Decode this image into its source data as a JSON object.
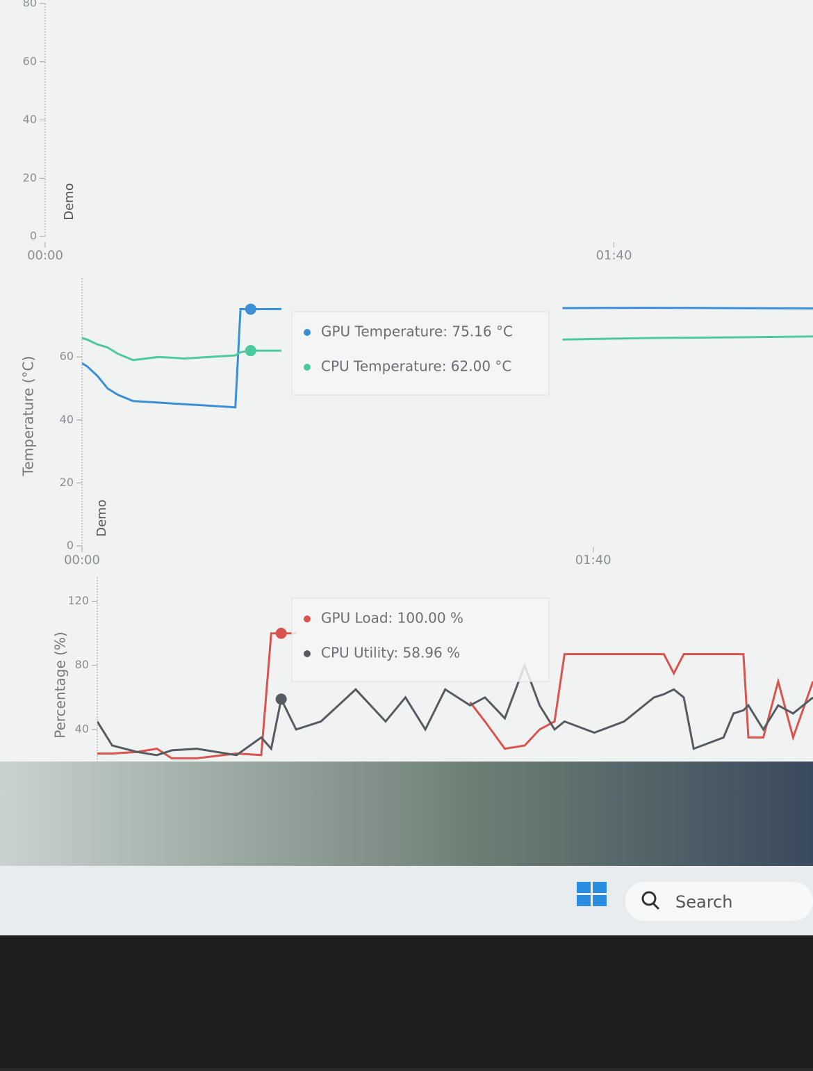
{
  "chart_data": [
    {
      "type": "line",
      "annotation": "Demo",
      "xlim": [
        0,
        135
      ],
      "xticks": [
        {
          "value": 0,
          "label": "00:00"
        },
        {
          "value": 100,
          "label": "01:40"
        }
      ],
      "ylim": [
        0,
        80
      ],
      "yticks": [
        0,
        20,
        40,
        60,
        80
      ],
      "grid": false
    },
    {
      "type": "line",
      "y_label": "Temperature (°C)",
      "annotation": "Demo",
      "xlim": [
        0,
        143
      ],
      "xticks": [
        {
          "value": 0,
          "label": "00:00"
        },
        {
          "value": 100,
          "label": "01:40"
        }
      ],
      "ylim": [
        0,
        85
      ],
      "yticks": [
        0,
        20,
        40,
        60
      ],
      "grid": false,
      "x": [
        0,
        1,
        3,
        5,
        7,
        10,
        15,
        20,
        25,
        30,
        31,
        33,
        39,
        60,
        94,
        110,
        125,
        143
      ],
      "series": [
        {
          "name": "GPU Temperature",
          "color": "#3a8fd8",
          "values": [
            58,
            57,
            54,
            50,
            48,
            46,
            45.5,
            45,
            44.5,
            44,
            75.2,
            75.16,
            75.2,
            null,
            75.5,
            75.6,
            75.5,
            75.4
          ]
        },
        {
          "name": "CPU Temperature",
          "color": "#4cc9a0",
          "values": [
            66,
            65.5,
            64,
            63,
            61,
            59,
            60,
            59.5,
            60,
            60.5,
            61.5,
            62,
            62,
            null,
            65.5,
            66,
            66.2,
            66.5
          ]
        }
      ],
      "hover_index": 11,
      "tooltip": [
        "GPU Temperature: 75.16 °C",
        "CPU Temperature: 62.00 °C"
      ]
    },
    {
      "type": "line",
      "y_label": "Percentage (%)",
      "xlim": [
        0,
        144
      ],
      "ylim": [
        20,
        135
      ],
      "yticks": [
        40,
        80,
        120
      ],
      "grid": false,
      "x": [
        0,
        3,
        8,
        12,
        15,
        20,
        28,
        33,
        35,
        37,
        40,
        45,
        52,
        58,
        62,
        66,
        70,
        75,
        78,
        82,
        86,
        89,
        92,
        94,
        100,
        106,
        112,
        114,
        116,
        118,
        120,
        126,
        128,
        130,
        131,
        134,
        137,
        140,
        144
      ],
      "series": [
        {
          "name": "GPU Load",
          "color": "#d9534f",
          "values": [
            25,
            25,
            26,
            28,
            22,
            22,
            25,
            24,
            100,
            100,
            100,
            null,
            null,
            null,
            null,
            null,
            null,
            57,
            45,
            28,
            30,
            40,
            45,
            87,
            87,
            87,
            87,
            87,
            75,
            87,
            87,
            87,
            87,
            87,
            35,
            35,
            70,
            35,
            70
          ]
        },
        {
          "name": "CPU Utility",
          "color": "#555b61",
          "values": [
            45,
            30,
            26,
            24,
            27,
            28,
            24,
            35,
            28,
            58.96,
            40,
            45,
            65,
            45,
            60,
            40,
            65,
            55,
            60,
            47,
            80,
            55,
            40,
            45,
            38,
            45,
            60,
            62,
            65,
            60,
            28,
            35,
            50,
            52,
            55,
            40,
            55,
            50,
            60
          ]
        }
      ],
      "hover_index": 9,
      "tooltip": [
        "GPU Load: 100.00 %",
        "CPU Utility: 58.96 %"
      ]
    }
  ],
  "taskbar": {
    "search": "Search"
  }
}
